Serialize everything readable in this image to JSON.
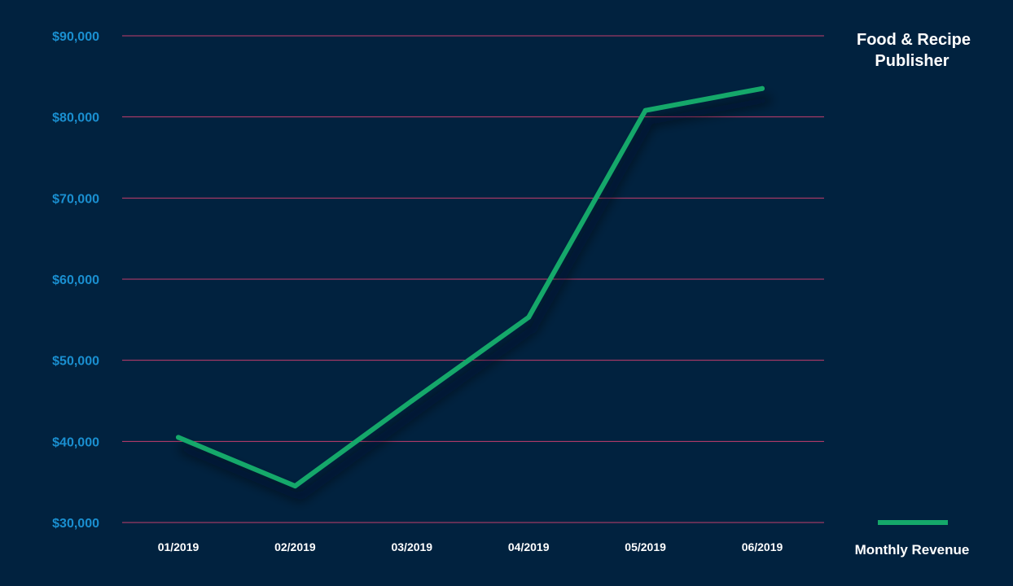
{
  "chart_data": {
    "type": "line",
    "title_line1": "Food & Recipe",
    "title_line2": "Publisher",
    "categories": [
      "01/2019",
      "02/2019",
      "03/2019",
      "04/2019",
      "05/2019",
      "06/2019"
    ],
    "series": [
      {
        "name": "Monthly Revenue",
        "values": [
          40500,
          34500,
          45000,
          55300,
          80800,
          83500
        ]
      }
    ],
    "yticks": [
      "$30,000",
      "$40,000",
      "$50,000",
      "$60,000",
      "$70,000",
      "$80,000",
      "$90,000"
    ],
    "ytick_values": [
      30000,
      40000,
      50000,
      60000,
      70000,
      80000,
      90000
    ],
    "ylim": [
      30000,
      90000
    ],
    "grid": true,
    "legend_position": "bottom-right",
    "colors": {
      "background": "#01223f",
      "line": "#15a86a",
      "grid": "#c43e6e",
      "ytick": "#1a8fd0",
      "text": "#ffffff"
    }
  }
}
